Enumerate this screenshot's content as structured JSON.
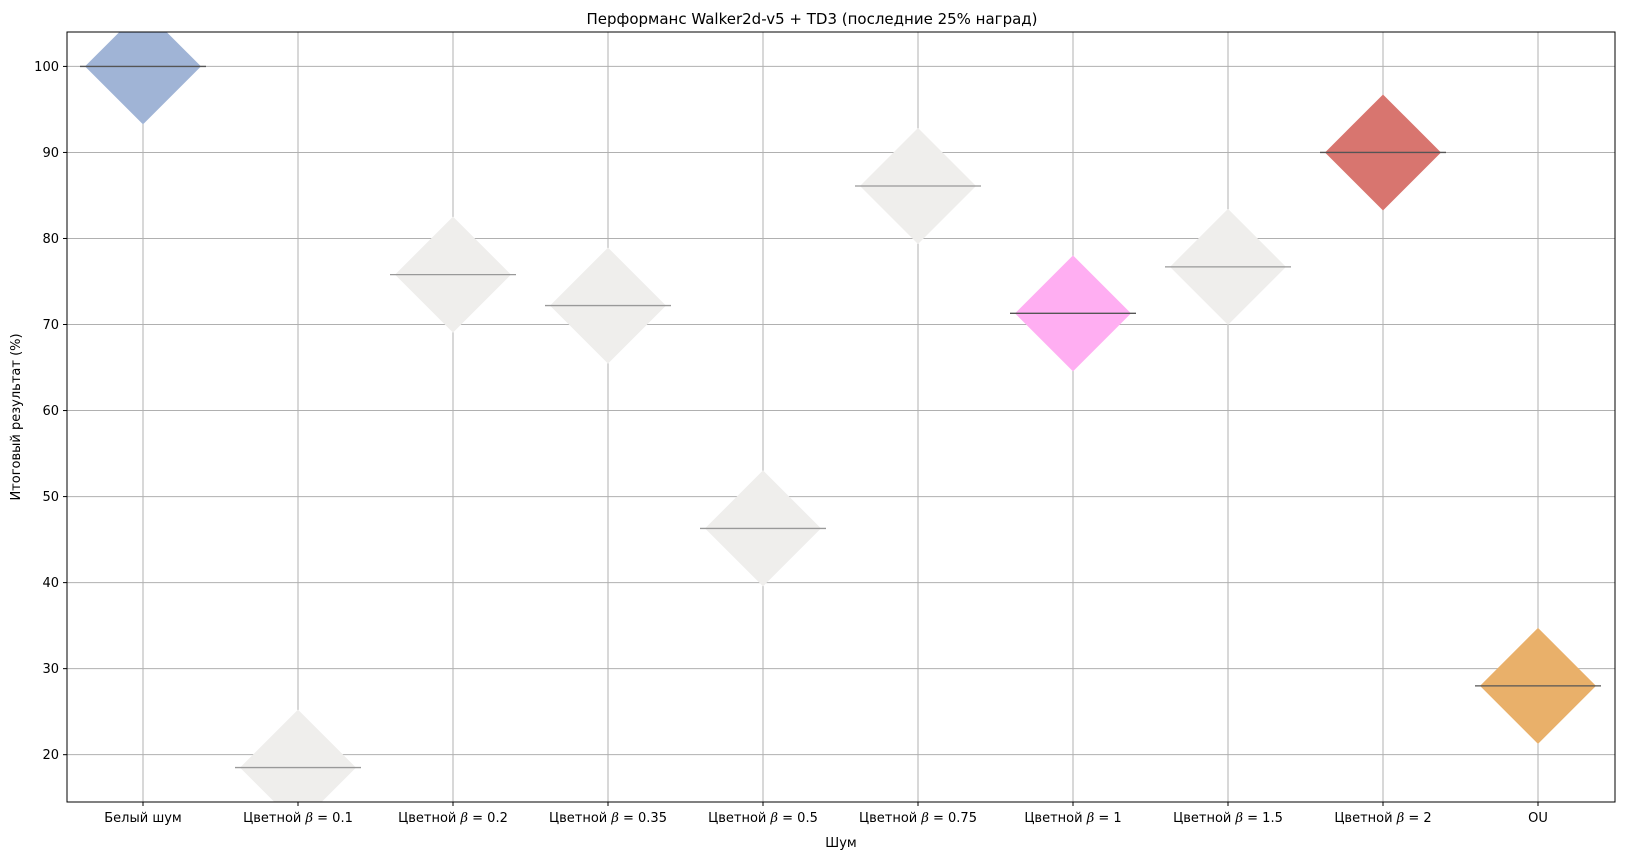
{
  "chart_data": {
    "type": "scatter",
    "title": "Перформанс Walker2d-v5 + TD3 (последние 25% наград)",
    "xlabel": "Шум",
    "ylabel": "Итоговый результат (%)",
    "ylim": [
      14.5,
      104
    ],
    "yticks": [
      20,
      30,
      40,
      50,
      60,
      70,
      80,
      90,
      100
    ],
    "grid": true,
    "marker": "diamond",
    "categories": [
      {
        "prefix": "Белый шум",
        "beta": ""
      },
      {
        "prefix": "Цветной ",
        "beta": "0.1"
      },
      {
        "prefix": "Цветной ",
        "beta": "0.2"
      },
      {
        "prefix": "Цветной ",
        "beta": "0.35"
      },
      {
        "prefix": "Цветной ",
        "beta": "0.5"
      },
      {
        "prefix": "Цветной ",
        "beta": "0.75"
      },
      {
        "prefix": "Цветной ",
        "beta": "1"
      },
      {
        "prefix": "Цветной ",
        "beta": "1.5"
      },
      {
        "prefix": "Цветной ",
        "beta": "2"
      },
      {
        "prefix": "OU",
        "beta": ""
      }
    ],
    "values": [
      100.0,
      18.5,
      75.8,
      72.2,
      46.3,
      86.1,
      71.3,
      76.7,
      90.0,
      28.0
    ],
    "colors": [
      "#a0b4d6",
      "#efeeec",
      "#efeeec",
      "#efeeec",
      "#efeeec",
      "#efeeec",
      "#ffaef2",
      "#efeeec",
      "#d8756f",
      "#e9b06a"
    ],
    "line_colors": [
      "#555555",
      "#999999",
      "#999999",
      "#999999",
      "#999999",
      "#999999",
      "#555555",
      "#999999",
      "#555555",
      "#555555"
    ]
  }
}
